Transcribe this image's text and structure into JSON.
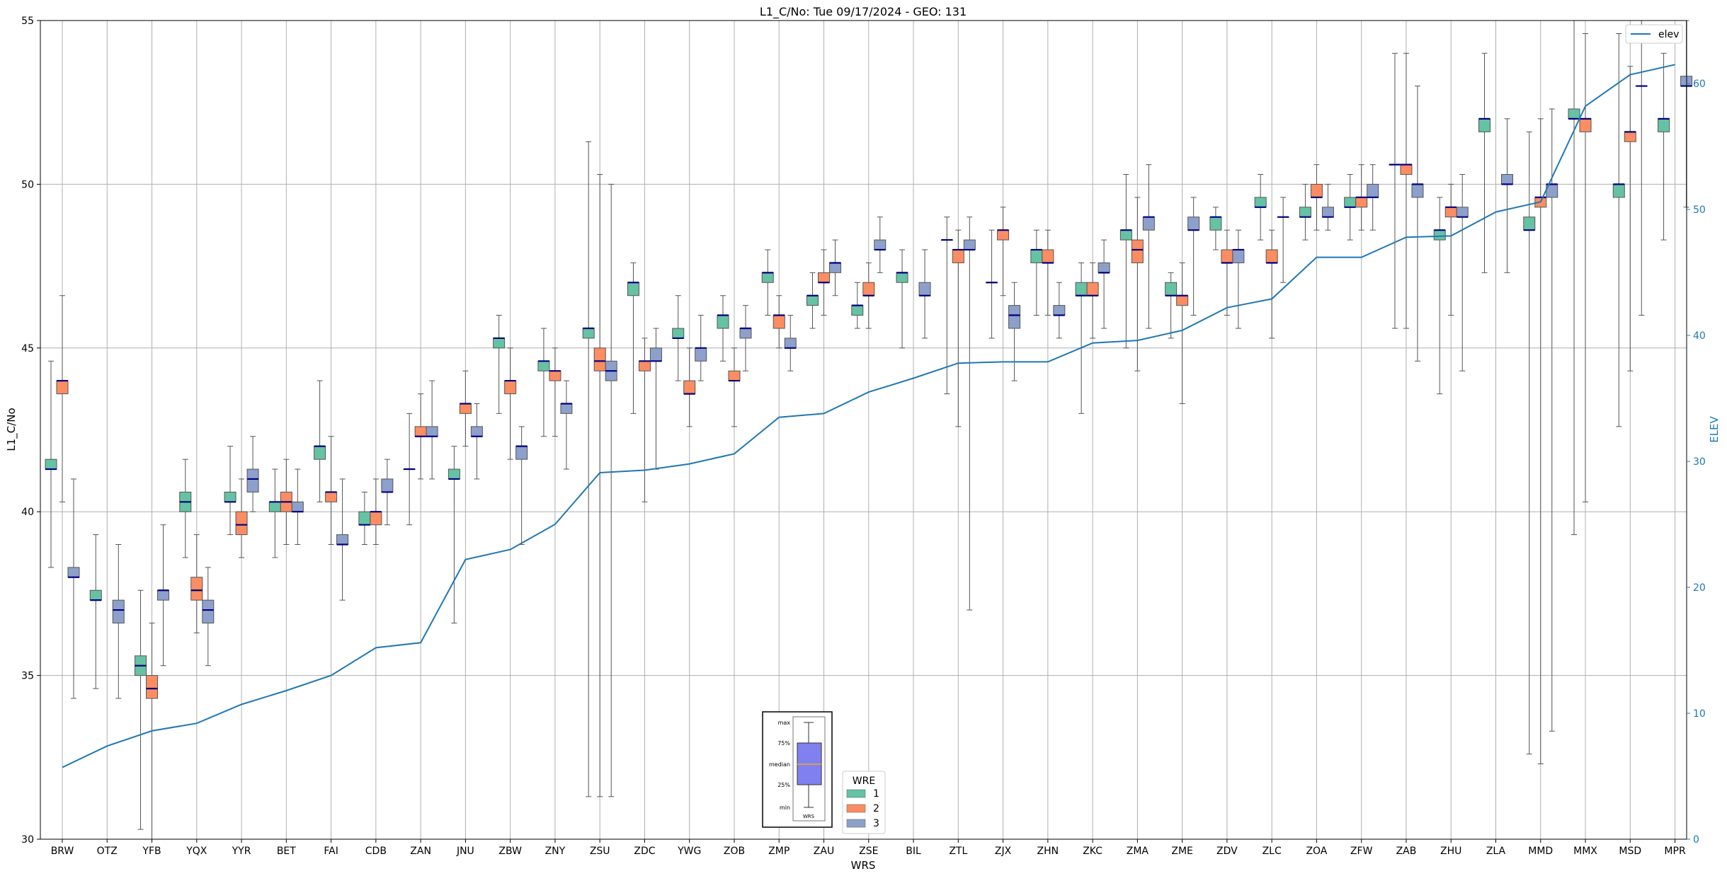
{
  "chart_data": {
    "type": "box",
    "title": "L1_C/No: Tue 09/17/2024 - GEO: 131",
    "xlabel": "WRS",
    "ylabel": "L1_C/No",
    "y2label": "ELEV",
    "ylim": [
      30,
      55
    ],
    "y2lim": [
      0,
      65
    ],
    "yticks": [
      30,
      35,
      40,
      45,
      50,
      55
    ],
    "y2ticks": [
      0,
      10,
      20,
      30,
      40,
      50,
      60
    ],
    "grid": true,
    "categories": [
      "BRW",
      "OTZ",
      "YFB",
      "YQX",
      "YYR",
      "BET",
      "FAI",
      "CDB",
      "ZAN",
      "JNU",
      "ZBW",
      "ZNY",
      "ZSU",
      "ZDC",
      "YWG",
      "ZOB",
      "ZMP",
      "ZAU",
      "ZSE",
      "BIL",
      "ZTL",
      "ZJX",
      "ZHN",
      "ZKC",
      "ZMA",
      "ZME",
      "ZDV",
      "ZLC",
      "ZOA",
      "ZFW",
      "ZAB",
      "ZHU",
      "ZLA",
      "MMD",
      "MMX",
      "MSD",
      "MPR"
    ],
    "series": [
      {
        "name": "1",
        "color": "#66c2a5",
        "boxes": [
          [
            38.3,
            41.3,
            41.3,
            41.6,
            44.6
          ],
          [
            34.6,
            37.3,
            37.3,
            37.6,
            39.3
          ],
          [
            30.3,
            35.0,
            35.3,
            35.6,
            37.6
          ],
          [
            38.6,
            40.0,
            40.3,
            40.6,
            41.6
          ],
          [
            39.3,
            40.3,
            40.3,
            40.6,
            42.0
          ],
          [
            38.6,
            40.0,
            40.3,
            40.3,
            41.3
          ],
          [
            40.3,
            41.6,
            42.0,
            42.0,
            44.0
          ],
          [
            39.0,
            39.6,
            39.6,
            40.0,
            40.6
          ],
          [
            39.6,
            41.3,
            41.3,
            41.3,
            43.0
          ],
          [
            36.6,
            41.0,
            41.0,
            41.3,
            42.0
          ],
          [
            43.0,
            45.0,
            45.3,
            45.3,
            46.0
          ],
          [
            42.3,
            44.3,
            44.6,
            44.6,
            45.6
          ],
          [
            31.3,
            45.3,
            45.6,
            45.6,
            51.3
          ],
          [
            43.0,
            46.6,
            47.0,
            47.0,
            47.6
          ],
          [
            44.0,
            45.3,
            45.3,
            45.6,
            46.6
          ],
          [
            44.6,
            45.6,
            46.0,
            46.0,
            46.6
          ],
          [
            46.0,
            47.0,
            47.3,
            47.3,
            48.0
          ],
          [
            45.6,
            46.3,
            46.6,
            46.6,
            47.3
          ],
          [
            45.6,
            46.0,
            46.3,
            46.3,
            47.0
          ],
          [
            45.0,
            47.0,
            47.3,
            47.3,
            48.0
          ],
          [
            43.6,
            48.3,
            48.3,
            48.3,
            49.0
          ],
          [
            45.3,
            47.0,
            47.0,
            47.0,
            48.6
          ],
          [
            46.0,
            47.6,
            48.0,
            48.0,
            48.6
          ],
          [
            43.0,
            46.6,
            46.6,
            47.0,
            47.6
          ],
          [
            45.0,
            48.3,
            48.6,
            48.6,
            50.3
          ],
          [
            45.3,
            46.6,
            46.6,
            47.0,
            47.3
          ],
          [
            48.0,
            48.6,
            49.0,
            49.0,
            49.3
          ],
          [
            48.3,
            49.3,
            49.3,
            49.6,
            50.3
          ],
          [
            48.3,
            49.0,
            49.0,
            49.3,
            50.0
          ],
          [
            48.3,
            49.3,
            49.3,
            49.6,
            50.3
          ],
          [
            45.6,
            50.6,
            50.6,
            50.6,
            54.0
          ],
          [
            43.6,
            48.3,
            48.6,
            48.6,
            49.6
          ],
          [
            47.3,
            51.6,
            52.0,
            52.0,
            54.0
          ],
          [
            32.6,
            48.6,
            48.6,
            49.0,
            51.6
          ],
          [
            39.3,
            52.0,
            52.0,
            52.3,
            55.0
          ],
          [
            42.6,
            49.6,
            50.0,
            50.0,
            54.6
          ],
          [
            48.3,
            51.6,
            52.0,
            52.0,
            54.0
          ]
        ]
      },
      {
        "name": "2",
        "color": "#fc8d62",
        "boxes": [
          [
            40.3,
            43.6,
            44.0,
            44.0,
            46.6
          ],
          null,
          [
            30.0,
            34.3,
            34.6,
            35.0,
            36.6
          ],
          [
            36.3,
            37.3,
            37.6,
            38.0,
            39.3
          ],
          [
            38.6,
            39.3,
            39.6,
            40.0,
            41.0
          ],
          [
            39.0,
            40.0,
            40.3,
            40.6,
            41.6
          ],
          [
            39.0,
            40.3,
            40.6,
            40.6,
            42.3
          ],
          [
            39.0,
            39.6,
            40.0,
            40.0,
            41.0
          ],
          [
            41.0,
            42.3,
            42.3,
            42.6,
            43.6
          ],
          [
            42.0,
            43.0,
            43.3,
            43.3,
            44.3
          ],
          [
            41.6,
            43.6,
            44.0,
            44.0,
            45.0
          ],
          [
            42.3,
            44.0,
            44.3,
            44.3,
            45.0
          ],
          [
            31.3,
            44.3,
            44.6,
            45.0,
            50.3
          ],
          [
            40.3,
            44.3,
            44.6,
            44.6,
            45.3
          ],
          [
            42.6,
            43.6,
            43.6,
            44.0,
            45.0
          ],
          [
            42.6,
            44.0,
            44.0,
            44.3,
            45.0
          ],
          [
            45.0,
            45.6,
            46.0,
            46.0,
            46.6
          ],
          [
            46.0,
            47.0,
            47.0,
            47.3,
            48.0
          ],
          [
            45.6,
            46.6,
            46.6,
            47.0,
            47.6
          ],
          null,
          [
            42.6,
            47.6,
            48.0,
            48.0,
            48.6
          ],
          [
            46.6,
            48.3,
            48.6,
            48.6,
            49.3
          ],
          [
            46.0,
            47.6,
            47.6,
            48.0,
            48.6
          ],
          [
            45.3,
            46.6,
            46.6,
            47.0,
            47.6
          ],
          [
            44.3,
            47.6,
            48.0,
            48.3,
            49.6
          ],
          [
            43.3,
            46.3,
            46.6,
            46.6,
            47.6
          ],
          [
            46.0,
            47.6,
            47.6,
            48.0,
            48.6
          ],
          [
            45.3,
            47.6,
            47.6,
            48.0,
            48.6
          ],
          [
            48.6,
            49.6,
            49.6,
            50.0,
            50.6
          ],
          [
            48.6,
            49.3,
            49.6,
            49.6,
            50.6
          ],
          [
            45.6,
            50.3,
            50.6,
            50.6,
            54.0
          ],
          [
            46.0,
            49.0,
            49.3,
            49.3,
            50.0
          ],
          null,
          [
            32.3,
            49.3,
            49.6,
            49.6,
            52.0
          ],
          [
            40.3,
            51.6,
            52.0,
            52.0,
            54.6
          ],
          [
            44.3,
            51.3,
            51.6,
            51.6,
            53.6
          ],
          null
        ]
      },
      {
        "name": "3",
        "color": "#8da0cb",
        "boxes": [
          [
            34.3,
            38.0,
            38.0,
            38.3,
            41.0
          ],
          [
            34.3,
            36.6,
            37.0,
            37.3,
            39.0
          ],
          [
            35.3,
            37.3,
            37.6,
            37.6,
            39.6
          ],
          [
            35.3,
            36.6,
            37.0,
            37.3,
            38.3
          ],
          [
            40.0,
            40.6,
            41.0,
            41.3,
            42.3
          ],
          [
            39.0,
            40.0,
            40.0,
            40.3,
            41.3
          ],
          [
            37.3,
            39.0,
            39.0,
            39.3,
            41.0
          ],
          [
            39.6,
            40.6,
            40.6,
            41.0,
            41.6
          ],
          [
            41.0,
            42.3,
            42.3,
            42.6,
            44.0
          ],
          [
            41.0,
            42.3,
            42.3,
            42.6,
            43.3
          ],
          [
            39.0,
            41.6,
            42.0,
            42.0,
            42.6
          ],
          [
            41.3,
            43.0,
            43.3,
            43.3,
            44.0
          ],
          [
            31.3,
            44.0,
            44.3,
            44.6,
            50.0
          ],
          [
            41.3,
            44.6,
            44.6,
            45.0,
            45.6
          ],
          [
            44.0,
            44.6,
            45.0,
            45.0,
            46.0
          ],
          [
            44.3,
            45.3,
            45.6,
            45.6,
            46.3
          ],
          [
            44.3,
            45.0,
            45.0,
            45.3,
            46.0
          ],
          [
            46.6,
            47.3,
            47.6,
            47.6,
            48.3
          ],
          [
            47.3,
            48.0,
            48.0,
            48.3,
            49.0
          ],
          [
            45.3,
            46.6,
            46.6,
            47.0,
            48.0
          ],
          [
            37.0,
            48.0,
            48.0,
            48.3,
            49.0
          ],
          [
            44.0,
            45.6,
            46.0,
            46.3,
            47.0
          ],
          [
            45.3,
            46.0,
            46.0,
            46.3,
            47.0
          ],
          [
            45.6,
            47.3,
            47.3,
            47.6,
            48.3
          ],
          [
            45.6,
            48.6,
            49.0,
            49.0,
            50.6
          ],
          [
            46.0,
            48.6,
            48.6,
            49.0,
            49.6
          ],
          [
            45.6,
            47.6,
            48.0,
            48.0,
            48.6
          ],
          [
            47.0,
            49.0,
            49.0,
            49.0,
            49.6
          ],
          [
            48.6,
            49.0,
            49.0,
            49.3,
            50.0
          ],
          [
            48.6,
            49.6,
            49.6,
            50.0,
            50.6
          ],
          [
            44.6,
            49.6,
            50.0,
            50.0,
            53.0
          ],
          [
            44.3,
            49.0,
            49.0,
            49.3,
            50.3
          ],
          [
            47.3,
            50.0,
            50.0,
            50.3,
            52.0
          ],
          [
            33.3,
            49.6,
            50.0,
            50.0,
            52.3
          ],
          null,
          [
            46.0,
            53.0,
            53.0,
            53.0,
            55.0
          ],
          [
            49.3,
            53.0,
            53.0,
            53.3,
            55.0
          ]
        ]
      }
    ],
    "line": {
      "name": "elev",
      "color": "#1f77b4",
      "axis": "right",
      "values": [
        5.7,
        7.4,
        8.6,
        9.2,
        10.7,
        11.8,
        13.0,
        15.2,
        15.6,
        22.2,
        23.0,
        25.0,
        29.1,
        29.3,
        29.8,
        30.6,
        33.5,
        33.8,
        35.5,
        36.6,
        37.8,
        37.9,
        37.9,
        39.4,
        39.6,
        40.4,
        42.2,
        42.9,
        46.2,
        46.2,
        47.8,
        47.9,
        49.8,
        50.6,
        58.2,
        60.7,
        61.5
      ]
    },
    "legend": {
      "title": "WRE",
      "labels": [
        "1",
        "2",
        "3"
      ],
      "placement": "lower-center"
    },
    "line_legend_placement": "upper-right",
    "inset": {
      "labels": [
        "max",
        "75%",
        "median",
        "25%",
        "min"
      ],
      "xlabel": "WRS",
      "box_color": "#8080f0",
      "median_color": "#f5a623"
    }
  }
}
